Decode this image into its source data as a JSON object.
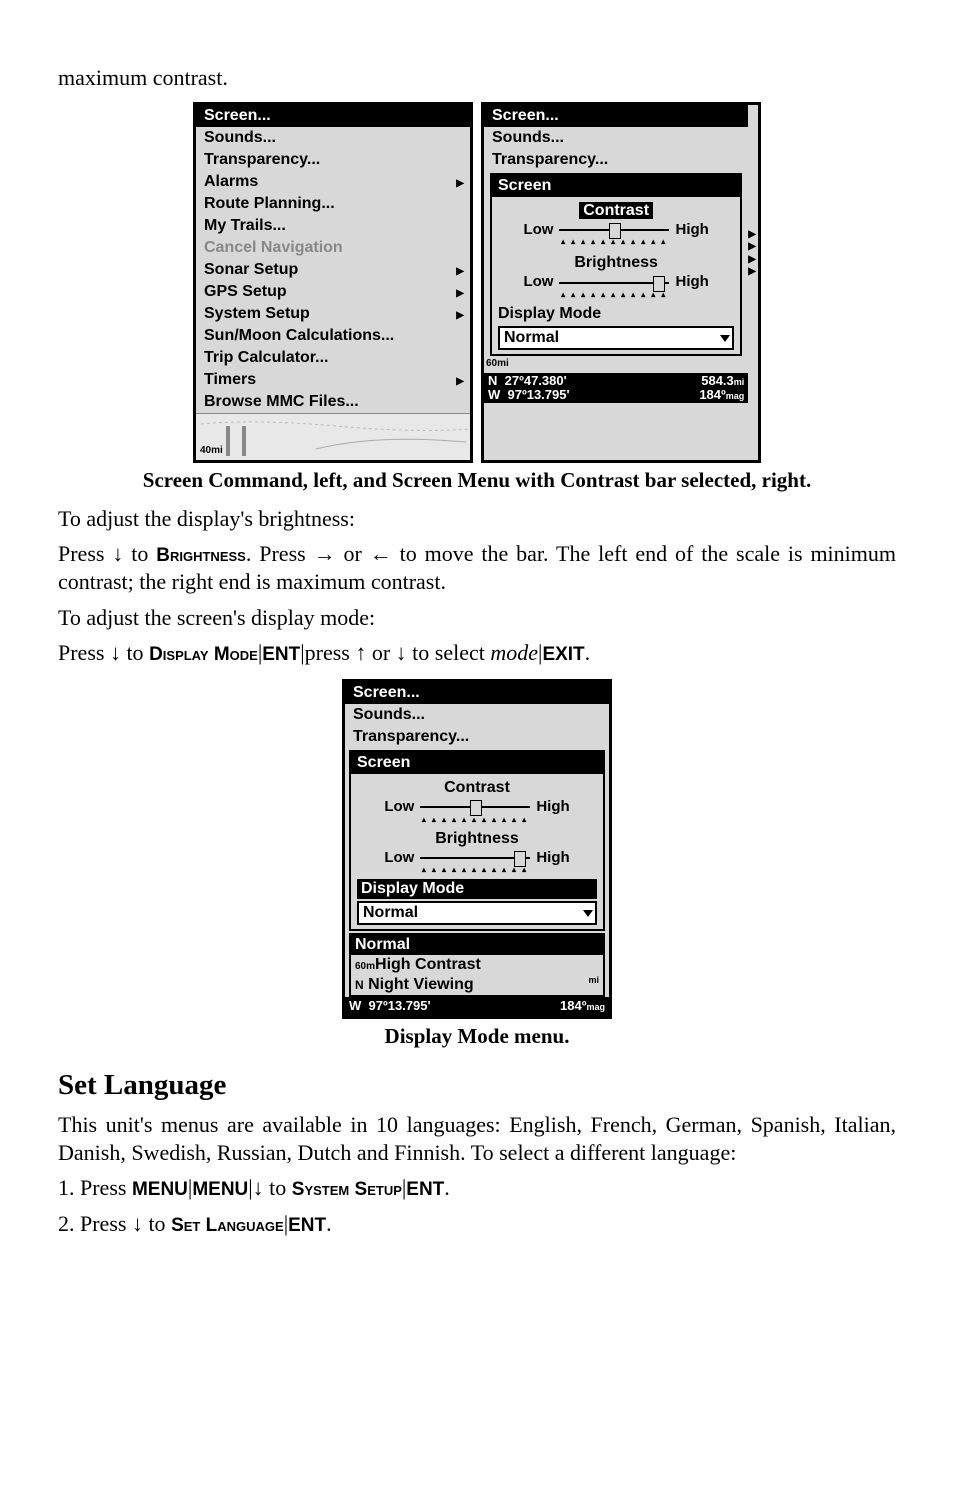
{
  "intro_line": "maximum contrast.",
  "left_menu": {
    "items": [
      {
        "label": "Screen...",
        "selected": true
      },
      {
        "label": "Sounds..."
      },
      {
        "label": "Transparency..."
      },
      {
        "label": "Alarms",
        "submenu": true
      },
      {
        "label": "Route Planning..."
      },
      {
        "label": "My Trails..."
      },
      {
        "label": "Cancel Navigation",
        "disabled": true
      },
      {
        "label": "Sonar Setup",
        "submenu": true
      },
      {
        "label": "GPS Setup",
        "submenu": true
      },
      {
        "label": "System Setup",
        "submenu": true
      },
      {
        "label": "Sun/Moon Calculations..."
      },
      {
        "label": "Trip Calculator..."
      },
      {
        "label": "Timers",
        "submenu": true
      },
      {
        "label": "Browse MMC Files..."
      }
    ],
    "scale": "40mi"
  },
  "right_popup": {
    "top_items": [
      "Screen...",
      "Sounds...",
      "Transparency..."
    ],
    "title": "Screen",
    "contrast_label": "Contrast",
    "contrast_selected": true,
    "brightness_label": "Brightness",
    "low": "Low",
    "high": "High",
    "display_mode_label": "Display Mode",
    "display_mode_value": "Normal",
    "scale": "60mi",
    "coord_n": "27º47.380'",
    "coord_w": "97º13.795'",
    "dist": "584.3",
    "dist_unit": "mi",
    "heading": "184º",
    "heading_unit": "mag",
    "contrast_pos_pct": 45,
    "brightness_pos_pct": 85
  },
  "caption1": "Screen Command, left, and Screen Menu with Contrast bar selected, right.",
  "para_brightness_intro": "To adjust the display's brightness:",
  "para_brightness_body_a": "Press ↓ to ",
  "para_brightness_keyword": "Brightness",
  "para_brightness_body_b": ". Press → or ← to move the bar. The left end of the scale is minimum contrast; the right end is maximum contrast.",
  "para_displaymode_intro": "To adjust the screen's display mode:",
  "para_dm_a": "Press ↓ to ",
  "para_dm_k1": "Display Mode",
  "para_dm_b": "|",
  "para_dm_k2": "ENT",
  "para_dm_c": "|press ↑ or ↓ to select ",
  "para_dm_mode": "mode",
  "para_dm_d": "|",
  "para_dm_k3": "EXIT",
  "para_dm_e": ".",
  "bottom_popup": {
    "top_items": [
      "Screen...",
      "Sounds...",
      "Transparency..."
    ],
    "title": "Screen",
    "contrast_label": "Contrast",
    "brightness_label": "Brightness",
    "low": "Low",
    "high": "High",
    "display_mode_label": "Display Mode",
    "display_mode_selected": true,
    "display_mode_value": "Normal",
    "dd_options": [
      "Normal",
      "High Contrast",
      "Night Viewing"
    ],
    "dd_selected_index": 0,
    "scale": "60m",
    "n": "N",
    "coord_w": "97º13.795'",
    "heading": "184º",
    "heading_unit": "mag",
    "side_mi": "mi",
    "contrast_pos_pct": 45,
    "brightness_pos_pct": 85
  },
  "caption2": "Display Mode menu.",
  "section_title": "Set Language",
  "lang_para": "This unit's menus are available in 10 languages: English, French, German, Spanish, Italian, Danish, Swedish, Russian, Dutch and Finnish. To select a different language:",
  "step1_a": "1. Press ",
  "step1_k1": "MENU",
  "step1_b": "|",
  "step1_k2": "MENU",
  "step1_c": "|↓ to ",
  "step1_k3": "System Setup",
  "step1_d": "|",
  "step1_k4": "ENT",
  "step1_e": ".",
  "step2_a": "2. Press ↓ to ",
  "step2_k1": "Set Language",
  "step2_b": "|",
  "step2_k2": "ENT",
  "step2_c": "."
}
